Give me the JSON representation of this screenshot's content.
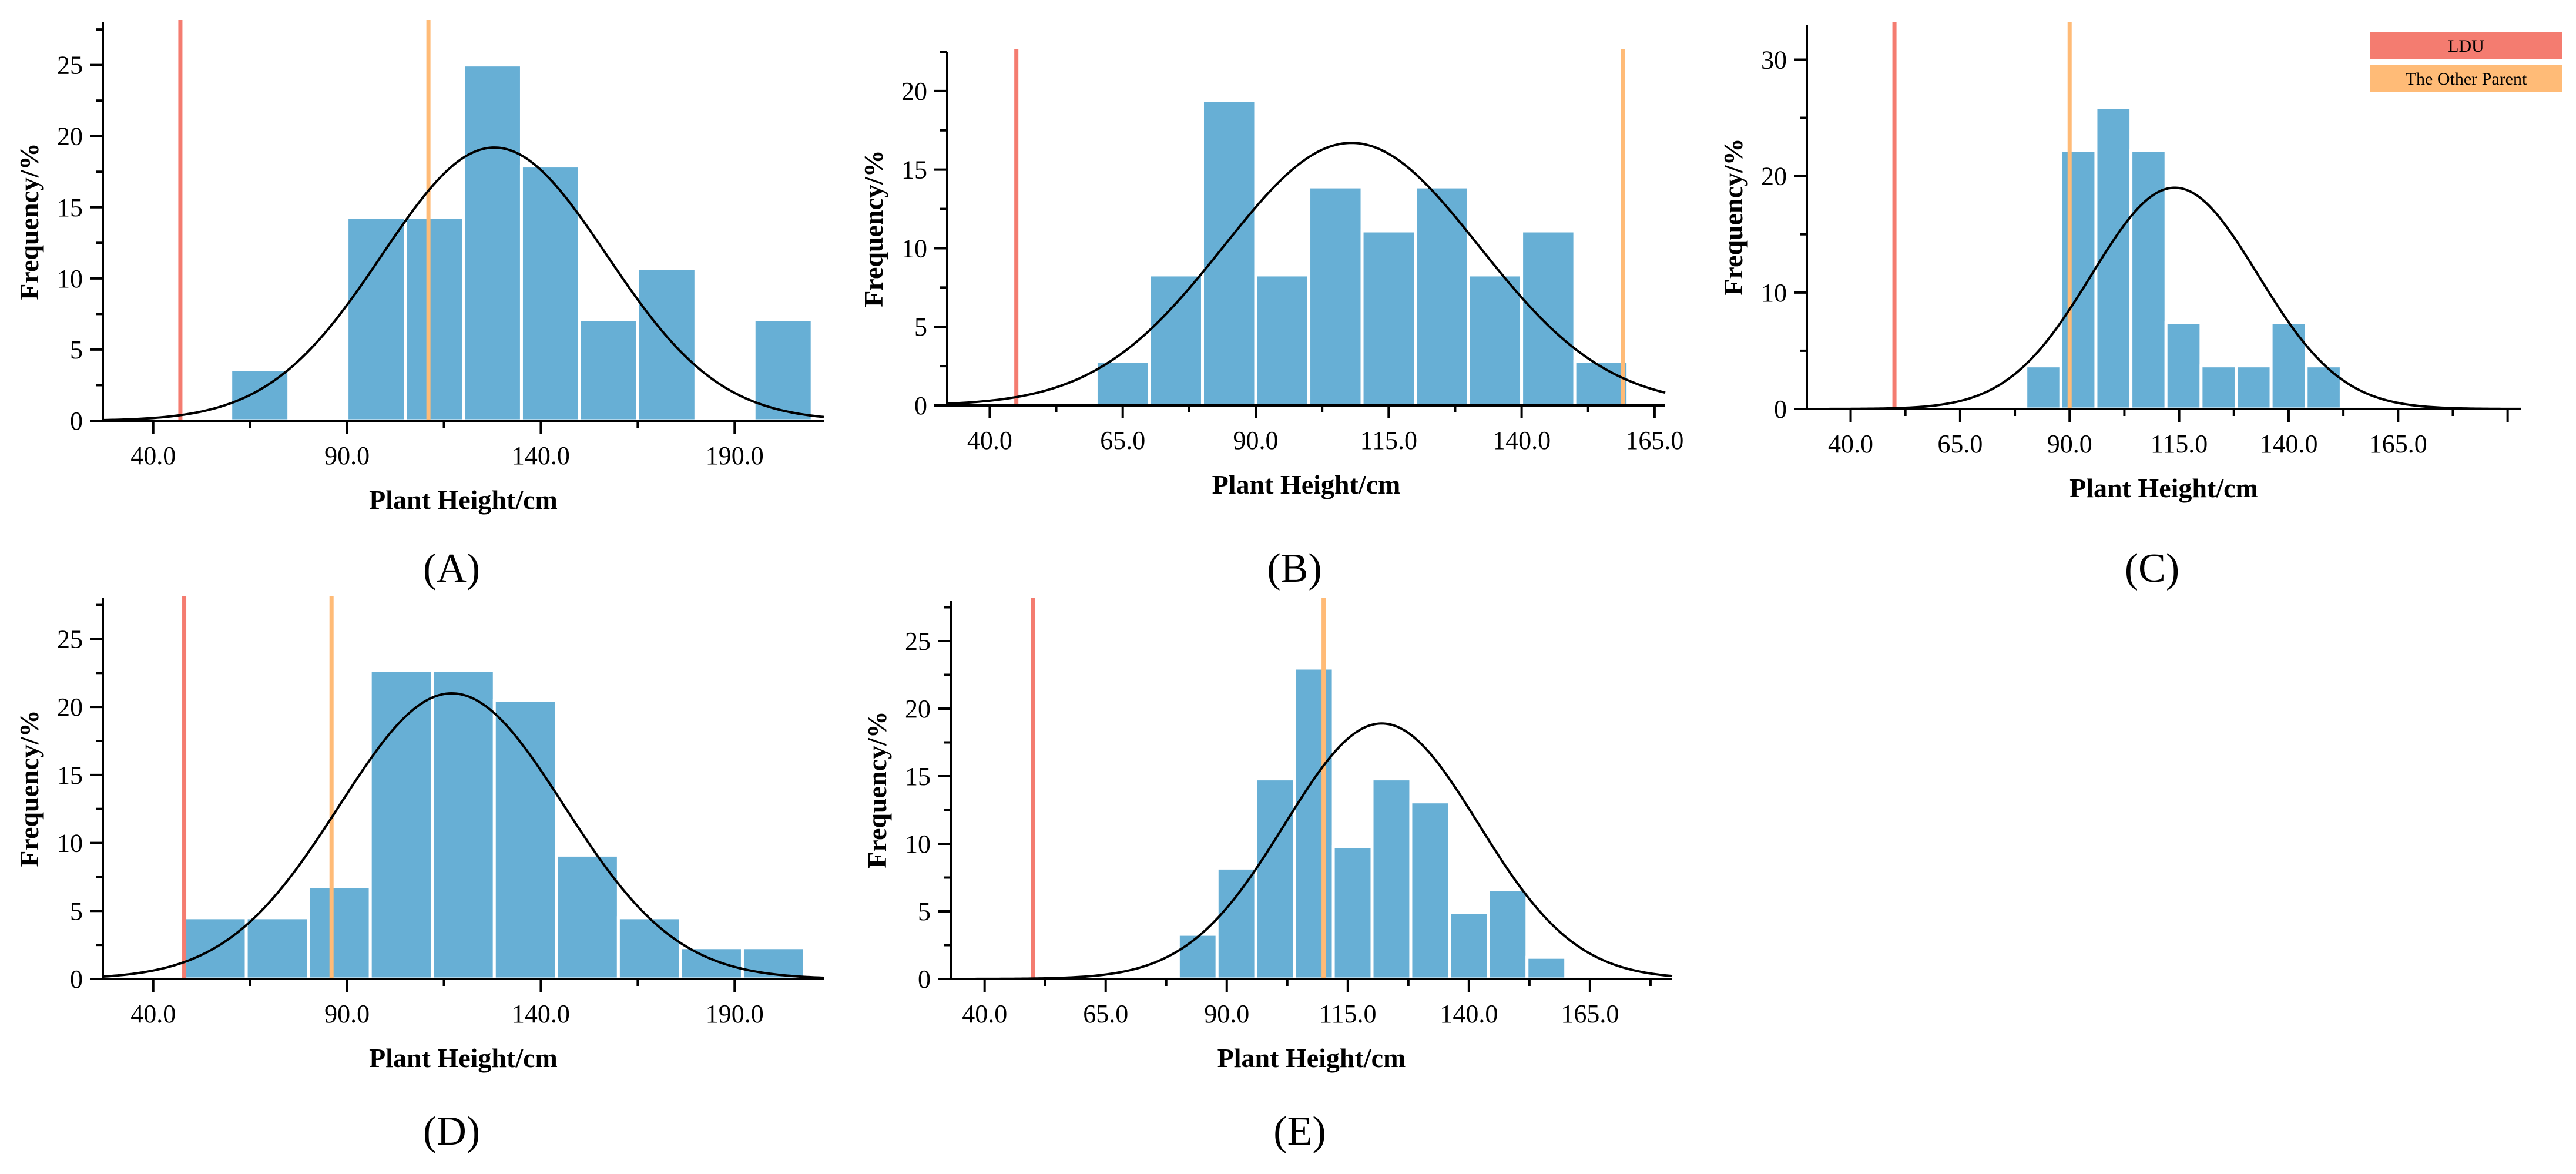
{
  "colors": {
    "bar": "#67afd5",
    "bar_edge": "#ffffff",
    "ldu_line": "#f47c70",
    "other_parent_line": "#ffbb77",
    "curve": "#000000"
  },
  "legend": {
    "placement": "top-right",
    "entries": [
      {
        "label": "LDU",
        "color": "#f47c70"
      },
      {
        "label": "The Other Parent",
        "color": "#ffbb77"
      }
    ]
  },
  "chart_data": [
    {
      "type": "bar",
      "panel_label": "(A)",
      "xlabel": "Plant Height/cm",
      "ylabel": "Frequency/%",
      "xlim": [
        27,
        213
      ],
      "ylim": [
        0,
        28
      ],
      "xticks": [
        40,
        90,
        140,
        190
      ],
      "xtick_labels": [
        "40.0",
        "90.0",
        "140.0",
        "190.0"
      ],
      "yticks": [
        0,
        5,
        10,
        15,
        20,
        25
      ],
      "ytick_labels": [
        "0",
        "5",
        "10",
        "15",
        "20",
        "25"
      ],
      "bin_edges": [
        60,
        75,
        90,
        105,
        120,
        135,
        150,
        165,
        180,
        195,
        210
      ],
      "values": [
        3.6,
        0,
        14.3,
        14.3,
        25.0,
        17.9,
        7.1,
        10.7,
        0,
        7.1
      ],
      "ldu_x": 47,
      "other_parent_x": 111,
      "normal_curve": {
        "mean": 128,
        "sd": 29,
        "peak": 19.2
      }
    },
    {
      "type": "bar",
      "panel_label": "(B)",
      "xlabel": "Plant Height/cm",
      "ylabel": "Frequency/%",
      "xlim": [
        32,
        167
      ],
      "ylim": [
        0,
        22.5
      ],
      "xticks": [
        40,
        65,
        90,
        115,
        140,
        165
      ],
      "xtick_labels": [
        "40.0",
        "65.0",
        "90.0",
        "115.0",
        "140.0",
        "165.0"
      ],
      "yticks": [
        0,
        5,
        10,
        15,
        20
      ],
      "ytick_labels": [
        "0",
        "5",
        "10",
        "15",
        "20"
      ],
      "bin_edges": [
        60,
        70,
        80,
        90,
        100,
        110,
        120,
        130,
        140,
        150,
        160
      ],
      "values": [
        2.8,
        8.3,
        19.4,
        8.3,
        13.9,
        11.1,
        13.9,
        8.3,
        11.1,
        2.8
      ],
      "ldu_x": 45,
      "other_parent_x": 159,
      "normal_curve": {
        "mean": 108,
        "sd": 24,
        "peak": 16.7
      }
    },
    {
      "type": "bar",
      "panel_label": "(C)",
      "xlabel": "Plant Height/cm",
      "ylabel": "Frequency/%",
      "xlim": [
        30,
        193
      ],
      "ylim": [
        0,
        33
      ],
      "xticks": [
        40,
        65,
        90,
        115,
        140,
        165
      ],
      "xtick_labels": [
        "40.0",
        "65.0",
        "90.0",
        "115.0",
        "140.0",
        "165.0"
      ],
      "yticks": [
        0,
        10,
        20,
        30
      ],
      "ytick_labels": [
        "0",
        "10",
        "20",
        "30"
      ],
      "bin_edges": [
        80,
        88,
        96,
        104,
        112,
        120,
        128,
        136,
        144,
        152,
        160,
        168
      ],
      "values": [
        3.7,
        22.2,
        25.9,
        22.2,
        7.4,
        3.7,
        3.7,
        7.4,
        3.7,
        0,
        0
      ],
      "ldu_x": 50,
      "other_parent_x": 90,
      "normal_curve": {
        "mean": 114,
        "sd": 19,
        "peak": 19.0
      }
    },
    {
      "type": "bar",
      "panel_label": "(D)",
      "xlabel": "Plant Height/cm",
      "ylabel": "Frequency/%",
      "xlim": [
        27,
        213
      ],
      "ylim": [
        0,
        28
      ],
      "xticks": [
        40,
        90,
        140,
        190
      ],
      "xtick_labels": [
        "40.0",
        "90.0",
        "140.0",
        "190.0"
      ],
      "yticks": [
        0,
        5,
        10,
        15,
        20,
        25
      ],
      "ytick_labels": [
        "0",
        "5",
        "10",
        "15",
        "20",
        "25"
      ],
      "bin_edges": [
        48,
        64,
        80,
        96,
        112,
        128,
        144,
        160,
        176,
        192,
        208
      ],
      "values": [
        4.5,
        4.5,
        6.8,
        22.7,
        22.7,
        20.5,
        9.1,
        4.5,
        2.3,
        2.3
      ],
      "ldu_x": 48,
      "other_parent_x": 86,
      "normal_curve": {
        "mean": 117,
        "sd": 29,
        "peak": 21.0
      }
    },
    {
      "type": "bar",
      "panel_label": "(E)",
      "xlabel": "Plant Height/cm",
      "ylabel": "Frequency/%",
      "xlim": [
        33,
        182
      ],
      "ylim": [
        0,
        28
      ],
      "xticks": [
        40,
        65,
        90,
        115,
        140,
        165
      ],
      "xtick_labels": [
        "40.0",
        "65.0",
        "90.0",
        "115.0",
        "140.0",
        "165.0"
      ],
      "yticks": [
        0,
        5,
        10,
        15,
        20,
        25
      ],
      "ytick_labels": [
        "0",
        "5",
        "10",
        "15",
        "20",
        "25"
      ],
      "bin_edges": [
        80,
        88,
        96,
        104,
        112,
        120,
        128,
        136,
        144,
        152,
        160,
        168,
        176
      ],
      "values": [
        3.3,
        8.2,
        14.8,
        23.0,
        9.8,
        14.8,
        13.1,
        4.9,
        6.6,
        1.6,
        0,
        0
      ],
      "ldu_x": 50,
      "other_parent_x": 110,
      "normal_curve": {
        "mean": 122,
        "sd": 20,
        "peak": 18.9
      }
    }
  ]
}
